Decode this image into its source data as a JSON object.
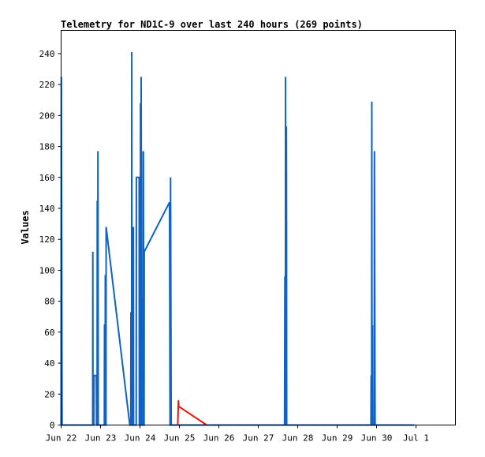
{
  "chart_data": {
    "type": "line",
    "title": "Telemetry for ND1C-9 over last 240 hours (269 points)",
    "xlabel": "",
    "ylabel": "Values",
    "xlim": [
      0,
      240
    ],
    "ylim": [
      0,
      255
    ],
    "x_unit": "hours",
    "x_ticks": [
      {
        "x": 0,
        "label": "Jun 22"
      },
      {
        "x": 24,
        "label": "Jun 23"
      },
      {
        "x": 48,
        "label": "Jun 24"
      },
      {
        "x": 72,
        "label": "Jun 25"
      },
      {
        "x": 96,
        "label": "Jun 26"
      },
      {
        "x": 120,
        "label": "Jun 27"
      },
      {
        "x": 144,
        "label": "Jun 28"
      },
      {
        "x": 168,
        "label": "Jun 29"
      },
      {
        "x": 192,
        "label": "Jun 30"
      },
      {
        "x": 216,
        "label": "Jul 1"
      }
    ],
    "y_ticks": [
      0,
      20,
      40,
      60,
      80,
      100,
      120,
      140,
      160,
      180,
      200,
      220,
      240
    ],
    "grid": false,
    "legend": "none",
    "series": [
      {
        "color": "#0f62c6",
        "points": [
          [
            0.0,
            0
          ],
          [
            0.1,
            225
          ],
          [
            0.3,
            140
          ],
          [
            0.6,
            0
          ],
          [
            19.2,
            0
          ],
          [
            19.3,
            112
          ],
          [
            19.4,
            0
          ],
          [
            19.9,
            0
          ],
          [
            20.0,
            32
          ],
          [
            21.4,
            32
          ],
          [
            21.5,
            0
          ],
          [
            21.9,
            0
          ],
          [
            22.0,
            145
          ],
          [
            22.2,
            60
          ],
          [
            22.4,
            177
          ],
          [
            22.6,
            0
          ],
          [
            26.3,
            0
          ],
          [
            26.4,
            65
          ],
          [
            26.6,
            0
          ],
          [
            26.8,
            0
          ],
          [
            26.9,
            97
          ],
          [
            27.1,
            0
          ],
          [
            27.3,
            0
          ],
          [
            27.4,
            128
          ],
          [
            41.8,
            0
          ],
          [
            42.4,
            0
          ],
          [
            42.5,
            73
          ],
          [
            42.7,
            0
          ],
          [
            42.9,
            0
          ],
          [
            43.0,
            241
          ],
          [
            43.2,
            0
          ],
          [
            43.4,
            0
          ],
          [
            43.5,
            120
          ],
          [
            43.7,
            0
          ],
          [
            43.9,
            0
          ],
          [
            44.0,
            128
          ],
          [
            44.1,
            0
          ],
          [
            45.7,
            0
          ],
          [
            45.8,
            160
          ],
          [
            47.5,
            160
          ],
          [
            47.6,
            0
          ],
          [
            47.8,
            0
          ],
          [
            47.9,
            133
          ],
          [
            48.0,
            80
          ],
          [
            48.1,
            0
          ],
          [
            48.2,
            0
          ],
          [
            48.3,
            208
          ],
          [
            48.4,
            30
          ],
          [
            48.5,
            0
          ],
          [
            48.6,
            0
          ],
          [
            48.7,
            225
          ],
          [
            48.8,
            170
          ],
          [
            48.9,
            160
          ],
          [
            49.0,
            177
          ],
          [
            49.1,
            0
          ],
          [
            49.5,
            0
          ],
          [
            49.6,
            82
          ],
          [
            49.8,
            0
          ],
          [
            50.0,
            0
          ],
          [
            50.1,
            177
          ],
          [
            50.3,
            0
          ],
          [
            50.5,
            0
          ],
          [
            50.6,
            112
          ],
          [
            66.0,
            144
          ],
          [
            66.3,
            0
          ],
          [
            66.5,
            0
          ],
          [
            66.6,
            160
          ],
          [
            66.8,
            80
          ],
          [
            67.0,
            0
          ],
          [
            136.0,
            0
          ],
          [
            136.2,
            96
          ],
          [
            136.3,
            0
          ],
          [
            136.5,
            0
          ],
          [
            136.6,
            225
          ],
          [
            136.8,
            0
          ],
          [
            137.0,
            0
          ],
          [
            137.1,
            193
          ],
          [
            137.2,
            128
          ],
          [
            137.3,
            0
          ],
          [
            188.6,
            0
          ],
          [
            188.7,
            32
          ],
          [
            188.8,
            0
          ],
          [
            189.0,
            0
          ],
          [
            189.1,
            209
          ],
          [
            189.2,
            64
          ],
          [
            189.5,
            64
          ],
          [
            189.6,
            0
          ],
          [
            190.6,
            0
          ],
          [
            190.7,
            177
          ],
          [
            190.9,
            88
          ],
          [
            191.1,
            0
          ],
          [
            215.0,
            0
          ]
        ]
      },
      {
        "color": "#e8150b",
        "points": [
          [
            71.0,
            0
          ],
          [
            71.4,
            16
          ],
          [
            71.6,
            12
          ],
          [
            88.6,
            0
          ]
        ]
      }
    ]
  }
}
